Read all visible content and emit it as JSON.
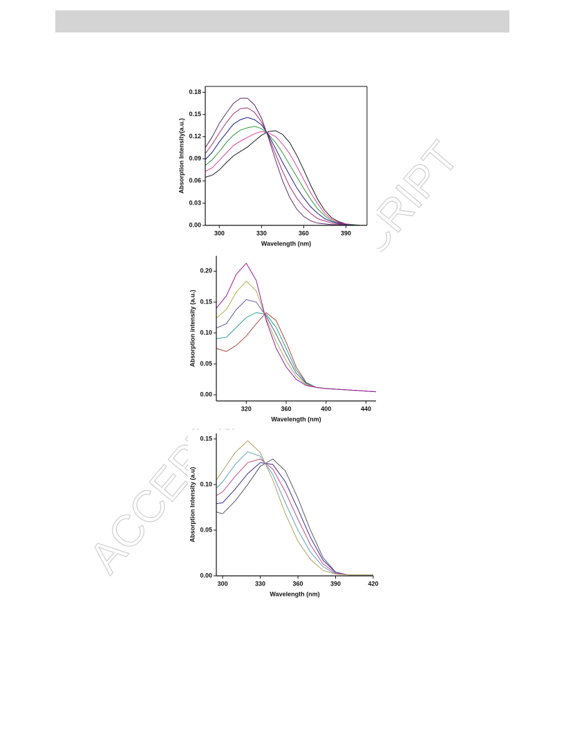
{
  "watermark": "ACCEPTED MANUSCRIPT",
  "chart_data": [
    {
      "type": "line",
      "xlabel": "Wavelength (nm)",
      "ylabel": "Absorption Intensity(a.u.)",
      "x": [
        290,
        295,
        300,
        305,
        310,
        315,
        320,
        325,
        330,
        335,
        340,
        345,
        350,
        355,
        360,
        365,
        370,
        375,
        380,
        385,
        390,
        395,
        400,
        405
      ],
      "xlim": [
        290,
        405
      ],
      "xticks": [
        300,
        330,
        360,
        390
      ],
      "ylim": [
        0,
        0.188
      ],
      "yticks": [
        {
          "value": 0,
          "label": "0.00"
        },
        {
          "value": 0.03,
          "label": "0.03"
        },
        {
          "value": 0.06,
          "label": "0.06"
        },
        {
          "value": 0.09,
          "label": "0.09"
        },
        {
          "value": 0.12,
          "label": "0.12"
        },
        {
          "value": 0.15,
          "label": "0.15"
        },
        {
          "value": 0.18,
          "label": "0.18"
        }
      ],
      "series": [
        {
          "color": "#1a1a1a",
          "values": [
            0.065,
            0.068,
            0.075,
            0.085,
            0.094,
            0.1,
            0.106,
            0.114,
            0.122,
            0.127,
            0.128,
            0.123,
            0.112,
            0.095,
            0.075,
            0.054,
            0.035,
            0.02,
            0.01,
            0.005,
            0.002,
            0.001,
            0,
            0
          ]
        },
        {
          "color": "#e0409a",
          "values": [
            0.073,
            0.078,
            0.088,
            0.098,
            0.108,
            0.114,
            0.119,
            0.124,
            0.127,
            0.125,
            0.12,
            0.11,
            0.097,
            0.08,
            0.062,
            0.044,
            0.029,
            0.016,
            0.008,
            0.004,
            0.002,
            0.001,
            0,
            0
          ]
        },
        {
          "color": "#2e9a3a",
          "values": [
            0.081,
            0.089,
            0.1,
            0.112,
            0.122,
            0.129,
            0.132,
            0.134,
            0.131,
            0.123,
            0.112,
            0.098,
            0.082,
            0.066,
            0.05,
            0.035,
            0.022,
            0.013,
            0.006,
            0.003,
            0.001,
            0.001,
            0,
            0
          ]
        },
        {
          "color": "#1c1c8c",
          "values": [
            0.089,
            0.099,
            0.113,
            0.125,
            0.137,
            0.143,
            0.146,
            0.143,
            0.136,
            0.122,
            0.104,
            0.085,
            0.068,
            0.051,
            0.037,
            0.025,
            0.016,
            0.009,
            0.005,
            0.003,
            0.001,
            0,
            0,
            0
          ]
        },
        {
          "color": "#a0306e",
          "values": [
            0.097,
            0.11,
            0.125,
            0.139,
            0.151,
            0.158,
            0.159,
            0.153,
            0.14,
            0.12,
            0.096,
            0.073,
            0.053,
            0.037,
            0.025,
            0.016,
            0.009,
            0.006,
            0.003,
            0.002,
            0,
            0,
            0,
            0
          ]
        },
        {
          "color": "#5a2a6a",
          "values": [
            0.105,
            0.12,
            0.138,
            0.152,
            0.165,
            0.172,
            0.172,
            0.163,
            0.145,
            0.118,
            0.088,
            0.06,
            0.038,
            0.022,
            0.012,
            0.006,
            0.003,
            0.002,
            0.001,
            0.001,
            0,
            0,
            0,
            0
          ]
        }
      ]
    },
    {
      "type": "line",
      "xlabel": "Wavelength (nm)",
      "ylabel": "Absorption intensity (a.u.)",
      "x": [
        290,
        300,
        310,
        320,
        330,
        340,
        350,
        360,
        370,
        380,
        390,
        400,
        410,
        420,
        430,
        440,
        450
      ],
      "xlim": [
        290,
        450
      ],
      "xticks": [
        320,
        360,
        400,
        440
      ],
      "ylim": [
        -0.01,
        0.225
      ],
      "yticks": [
        {
          "value": 0,
          "label": "0.00"
        },
        {
          "value": 0.05,
          "label": "0.05"
        },
        {
          "value": 0.1,
          "label": "0.10"
        },
        {
          "value": 0.15,
          "label": "0.15"
        },
        {
          "value": 0.2,
          "label": "0.20"
        }
      ],
      "series": [
        {
          "color": "#b04a3a",
          "values": [
            0.075,
            0.07,
            0.08,
            0.095,
            0.115,
            0.133,
            0.12,
            0.085,
            0.045,
            0.02,
            0.012,
            0.01,
            0.009,
            0.008,
            0.007,
            0.006,
            0.005
          ]
        },
        {
          "color": "#2aa08a",
          "values": [
            0.091,
            0.093,
            0.109,
            0.125,
            0.133,
            0.13,
            0.109,
            0.075,
            0.04,
            0.019,
            0.012,
            0.01,
            0.009,
            0.008,
            0.007,
            0.006,
            0.005
          ]
        },
        {
          "color": "#5a5aa0",
          "values": [
            0.108,
            0.115,
            0.138,
            0.154,
            0.15,
            0.127,
            0.098,
            0.065,
            0.035,
            0.018,
            0.012,
            0.01,
            0.009,
            0.008,
            0.007,
            0.006,
            0.005
          ]
        },
        {
          "color": "#b0b050",
          "values": [
            0.124,
            0.138,
            0.166,
            0.184,
            0.168,
            0.123,
            0.086,
            0.055,
            0.03,
            0.016,
            0.012,
            0.01,
            0.009,
            0.008,
            0.007,
            0.006,
            0.005
          ]
        },
        {
          "color": "#9a1aa0",
          "values": [
            0.14,
            0.16,
            0.195,
            0.213,
            0.185,
            0.12,
            0.075,
            0.045,
            0.025,
            0.015,
            0.012,
            0.01,
            0.009,
            0.008,
            0.007,
            0.006,
            0.005
          ]
        }
      ]
    },
    {
      "type": "line",
      "xlabel": "Wavelength (nm)",
      "ylabel": "Absorption Intensity (a.u)",
      "x": [
        295,
        300,
        310,
        320,
        330,
        340,
        350,
        360,
        370,
        380,
        390,
        400,
        410,
        420
      ],
      "xlim": [
        295,
        420
      ],
      "xticks": [
        300,
        330,
        360,
        390,
        420
      ],
      "ylim": [
        0,
        0.156
      ],
      "yticks": [
        {
          "value": 0,
          "label": "0.00"
        },
        {
          "value": 0.05,
          "label": "0.05"
        },
        {
          "value": 0.1,
          "label": "0.10"
        },
        {
          "value": 0.15,
          "label": "0.15"
        }
      ],
      "series": [
        {
          "color": "#555566",
          "values": [
            0.07,
            0.068,
            0.082,
            0.1,
            0.12,
            0.128,
            0.115,
            0.085,
            0.05,
            0.02,
            0.004,
            0.001,
            0.001,
            0.001
          ]
        },
        {
          "color": "#3a2a9a",
          "values": [
            0.079,
            0.08,
            0.095,
            0.112,
            0.124,
            0.122,
            0.103,
            0.073,
            0.042,
            0.017,
            0.004,
            0.001,
            0.001,
            0.001
          ]
        },
        {
          "color": "#c04a8a",
          "values": [
            0.088,
            0.092,
            0.109,
            0.124,
            0.128,
            0.117,
            0.092,
            0.062,
            0.034,
            0.013,
            0.003,
            0.001,
            0.001,
            0.001
          ]
        },
        {
          "color": "#5aa0c0",
          "values": [
            0.096,
            0.103,
            0.122,
            0.136,
            0.131,
            0.111,
            0.08,
            0.05,
            0.026,
            0.01,
            0.002,
            0.001,
            0.001,
            0.001
          ]
        },
        {
          "color": "#b0a060",
          "values": [
            0.105,
            0.115,
            0.135,
            0.148,
            0.135,
            0.105,
            0.068,
            0.038,
            0.018,
            0.006,
            0.002,
            0.001,
            0.001,
            0.001
          ]
        }
      ]
    }
  ]
}
